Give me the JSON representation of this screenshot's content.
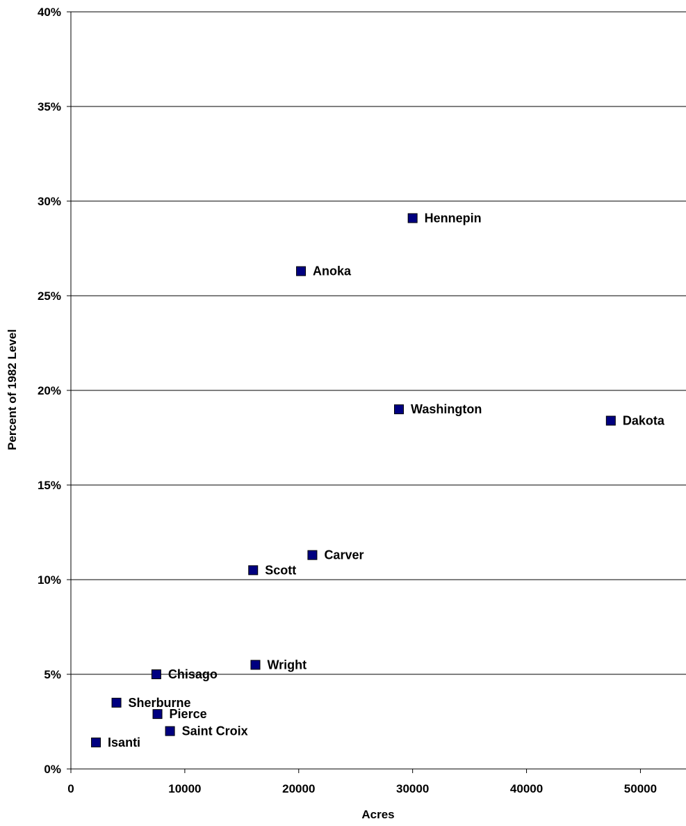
{
  "chart_data": {
    "type": "scatter",
    "title": "",
    "xlabel": "Acres",
    "ylabel": "Percent of 1982 Level",
    "xlim": [
      0,
      54000
    ],
    "ylim": [
      0,
      40
    ],
    "x_ticks": [
      0,
      10000,
      20000,
      30000,
      40000,
      50000
    ],
    "y_ticks": [
      0,
      5,
      10,
      15,
      20,
      25,
      30,
      35,
      40
    ],
    "y_tick_labels": [
      "0%",
      "5%",
      "10%",
      "15%",
      "20%",
      "25%",
      "30%",
      "35%",
      "40%"
    ],
    "grid": "horizontal",
    "marker": "square",
    "marker_color": "#000080",
    "points": [
      {
        "label": "Hennepin",
        "x": 30000,
        "y": 29.1
      },
      {
        "label": "Anoka",
        "x": 20200,
        "y": 26.3
      },
      {
        "label": "Washington",
        "x": 28800,
        "y": 19.0
      },
      {
        "label": "Dakota",
        "x": 47400,
        "y": 18.4
      },
      {
        "label": "Carver",
        "x": 21200,
        "y": 11.3
      },
      {
        "label": "Scott",
        "x": 16000,
        "y": 10.5
      },
      {
        "label": "Wright",
        "x": 16200,
        "y": 5.5
      },
      {
        "label": "Chisago",
        "x": 7500,
        "y": 5.0
      },
      {
        "label": "Sherburne",
        "x": 4000,
        "y": 3.5
      },
      {
        "label": "Pierce",
        "x": 7600,
        "y": 2.9
      },
      {
        "label": "Saint Croix",
        "x": 8700,
        "y": 2.0
      },
      {
        "label": "Isanti",
        "x": 2200,
        "y": 1.4
      }
    ]
  }
}
